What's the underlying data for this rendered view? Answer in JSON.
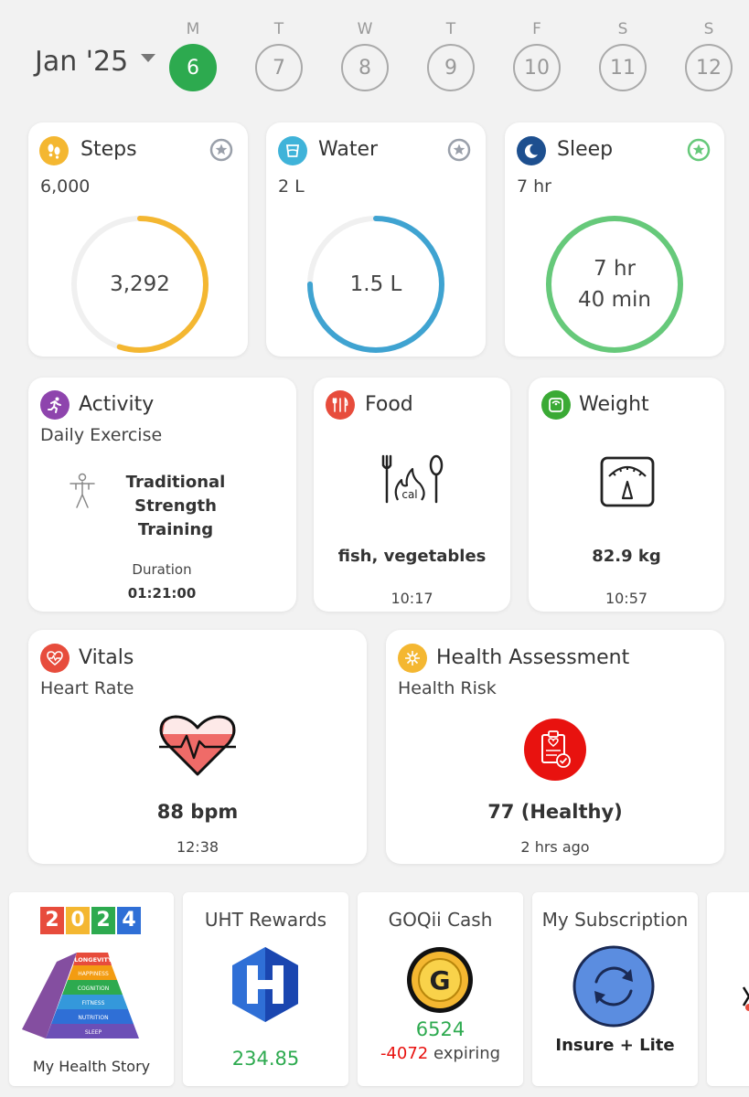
{
  "header": {
    "month": "Jan '25",
    "days": [
      {
        "letter": "M",
        "num": "6",
        "selected": true
      },
      {
        "letter": "T",
        "num": "7"
      },
      {
        "letter": "W",
        "num": "8"
      },
      {
        "letter": "T",
        "num": "9"
      },
      {
        "letter": "F",
        "num": "10"
      },
      {
        "letter": "S",
        "num": "11"
      },
      {
        "letter": "S",
        "num": "12"
      }
    ]
  },
  "steps": {
    "title": "Steps",
    "goal": "6,000",
    "value": "3,292",
    "progress": 0.55,
    "color": "#f4b731"
  },
  "water": {
    "title": "Water",
    "goal": "2 L",
    "value": "1.5 L",
    "progress": 0.75,
    "color": "#3fa3d1"
  },
  "sleep": {
    "title": "Sleep",
    "goal": "7 hr",
    "value_line1": "7 hr",
    "value_line2": "40 min",
    "progress": 1.0,
    "color": "#66c97a"
  },
  "activity": {
    "title": "Activity",
    "subtitle": "Daily Exercise",
    "name_line1": "Traditional",
    "name_line2": "Strength Training",
    "duration_label": "Duration",
    "duration": "01:21:00"
  },
  "food": {
    "title": "Food",
    "items": "fish, vegetables",
    "time": "10:17",
    "icon_text": "cal"
  },
  "weight": {
    "title": "Weight",
    "value": "82.9 kg",
    "time": "10:57"
  },
  "vitals": {
    "title": "Vitals",
    "subtitle": "Heart Rate",
    "value": "88 bpm",
    "time": "12:38"
  },
  "assessment": {
    "title": "Health Assessment",
    "subtitle": "Health Risk",
    "value": "77 (Healthy)",
    "time": "2 hrs ago"
  },
  "bottom": {
    "story": {
      "year": "2024",
      "label": "My Health Story",
      "pyramid": [
        "LONGEVITY",
        "HAPPINESS",
        "COGNITION",
        "FITNESS",
        "NUTRITION",
        "SLEEP"
      ]
    },
    "rewards": {
      "title": "UHT Rewards",
      "value": "234.85"
    },
    "cash": {
      "title": "GOQii Cash",
      "value": "6524",
      "expiring_value": "-4072",
      "expiring_label": "expiring"
    },
    "subscription": {
      "title": "My Subscription",
      "plan": "Insure + Lite"
    }
  }
}
